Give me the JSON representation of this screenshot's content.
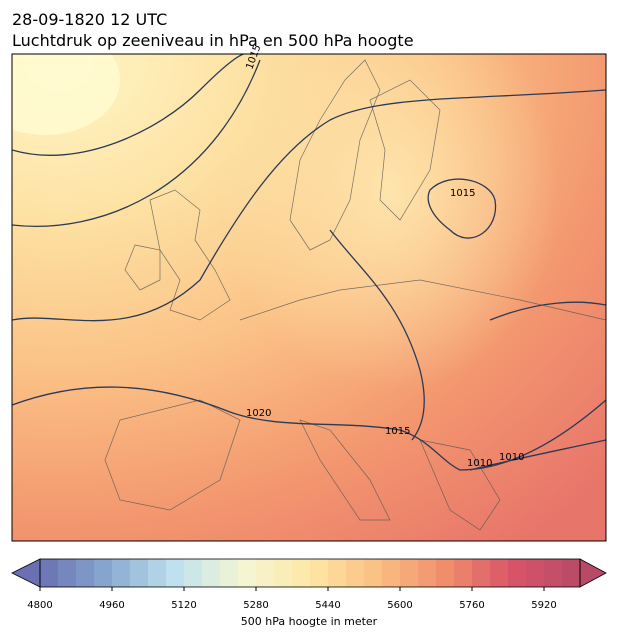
{
  "header": {
    "title": "28-09-1820 12 UTC",
    "subtitle": "Luchtdruk op zeeniveau in hPa en 500 hPa hoogte"
  },
  "map": {
    "contour_labels": [
      "1015",
      "1015",
      "1020",
      "1015",
      "1010",
      "1010"
    ]
  },
  "colorbar": {
    "label": "500 hPa hoogte in meter",
    "lim": [
      4800,
      6000
    ],
    "step": 40,
    "ticks": [
      4800,
      4960,
      5120,
      5280,
      5440,
      5600,
      5760,
      5920
    ],
    "colors": [
      "#6a70b2",
      "#88a9d0",
      "#bfe0ee",
      "#f4f6d4",
      "#fde7a6",
      "#fbbf83",
      "#f08e6c",
      "#d85468",
      "#b84a68"
    ]
  }
}
